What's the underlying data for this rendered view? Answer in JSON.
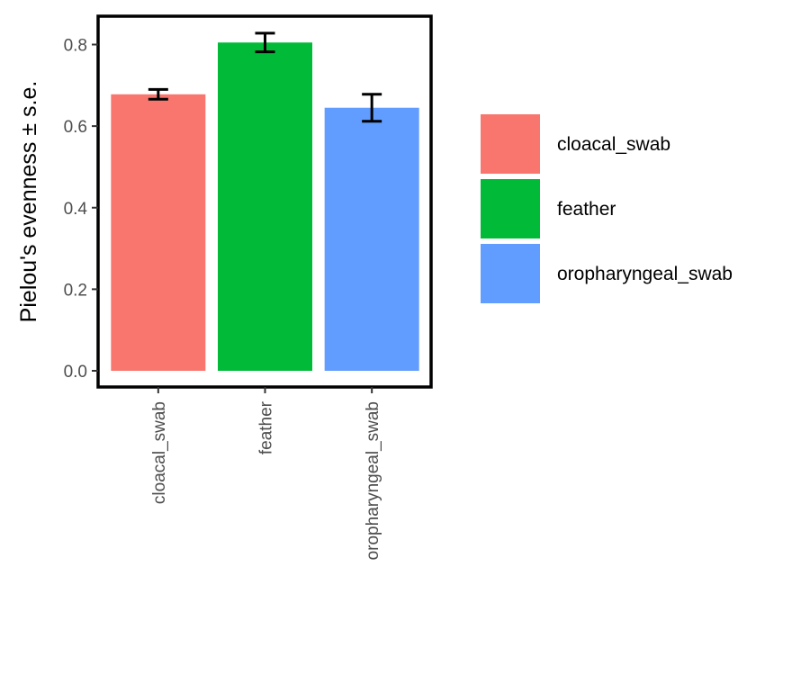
{
  "chart_data": {
    "type": "bar",
    "categories": [
      "cloacal_swab",
      "feather",
      "oropharyngeal_swab"
    ],
    "values": [
      0.678,
      0.805,
      0.645
    ],
    "errors": [
      0.012,
      0.023,
      0.033
    ],
    "colors": [
      "#F8766D",
      "#00BA38",
      "#619CFF"
    ],
    "ylabel": "Pielou's evenness  ± s.e.",
    "xlabel": "",
    "ylim": [
      0,
      0.86
    ],
    "yticks": [
      0.0,
      0.2,
      0.4,
      0.6,
      0.8
    ],
    "ytick_labels": [
      "0.0",
      "0.2",
      "0.4",
      "0.6",
      "0.8"
    ],
    "legend": {
      "position": "right",
      "entries": [
        "cloacal_swab",
        "feather",
        "oropharyngeal_swab"
      ]
    },
    "grid": false
  }
}
